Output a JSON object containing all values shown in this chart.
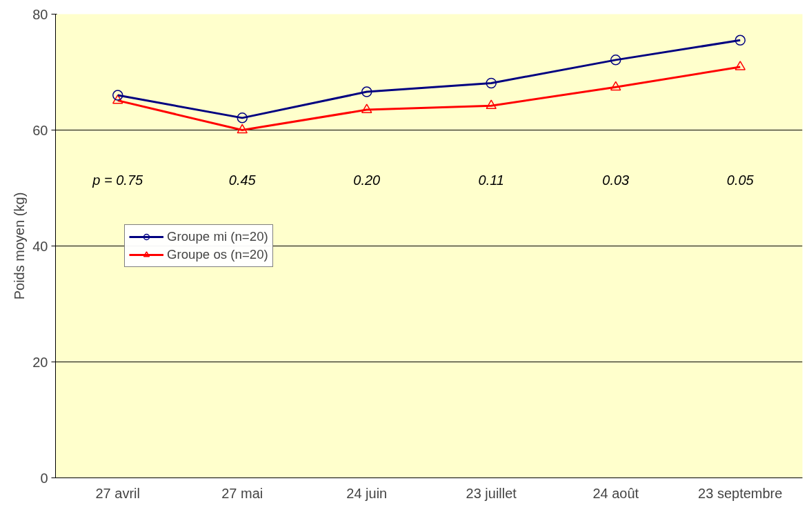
{
  "chart_data": {
    "type": "line",
    "ylabel": "Poids moyen (kg)",
    "categories": [
      "27 avril",
      "27 mai",
      "24 juin",
      "23 juillet",
      "24 août",
      "23 septembre"
    ],
    "series": [
      {
        "name": "Groupe mi (n=20)",
        "color": "#000080",
        "marker": "circle",
        "values": [
          66.0,
          62.1,
          66.6,
          68.1,
          72.1,
          75.5
        ]
      },
      {
        "name": "Groupe os (n=20)",
        "color": "#ff0000",
        "marker": "triangle",
        "values": [
          65.1,
          60.0,
          63.5,
          64.2,
          67.4,
          70.9
        ]
      }
    ],
    "annotations": [
      "p = 0.75",
      "0.45",
      "0.20",
      "0.11",
      "0.03",
      "0.05"
    ],
    "ylim": [
      0,
      80
    ],
    "yticks": [
      0,
      20,
      40,
      60,
      80
    ],
    "grid": "y",
    "legend": "left",
    "line_style": "solid"
  }
}
